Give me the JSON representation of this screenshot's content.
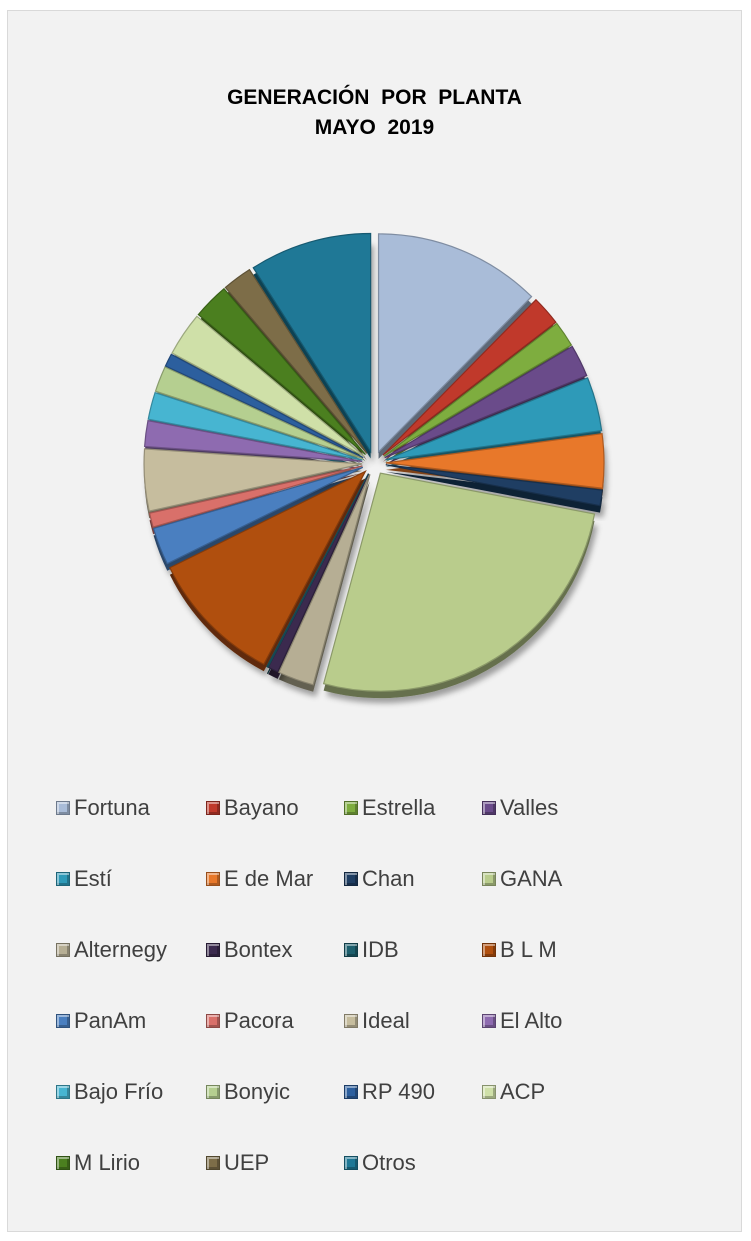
{
  "chart_data": {
    "type": "pie",
    "title_lines": [
      "GENERACIÓN  POR  PLANTA",
      "MAYO  2019"
    ],
    "legend_position": "bottom",
    "exploded": true,
    "slices": [
      {
        "name": "Fortuna",
        "value": 13.0,
        "color": "#a9bcd8"
      },
      {
        "name": "Bayano",
        "value": 2.3,
        "color": "#c0392b"
      },
      {
        "name": "Estrella",
        "value": 2.0,
        "color": "#7ead3f"
      },
      {
        "name": "Valles",
        "value": 2.5,
        "color": "#6a4b8a"
      },
      {
        "name": "Estí",
        "value": 4.2,
        "color": "#2e9ab8"
      },
      {
        "name": "E de Mar",
        "value": 4.2,
        "color": "#e8782a"
      },
      {
        "name": "Chan",
        "value": 1.2,
        "color": "#1f3e63"
      },
      {
        "name": "GANA",
        "value": 27.5,
        "color": "#b9cc8c"
      },
      {
        "name": "Alternegy",
        "value": 2.8,
        "color": "#b6ae94"
      },
      {
        "name": "Bontex",
        "value": 0.8,
        "color": "#3b2a4e"
      },
      {
        "name": "IDB",
        "value": 0.1,
        "color": "#1d5f6d"
      },
      {
        "name": "B L M",
        "value": 10.5,
        "color": "#b04f0e"
      },
      {
        "name": "PanAm",
        "value": 2.9,
        "color": "#4a7fc0"
      },
      {
        "name": "Pacora",
        "value": 1.1,
        "color": "#d9706a"
      },
      {
        "name": "Ideal",
        "value": 4.8,
        "color": "#c6bd9e"
      },
      {
        "name": "El Alto",
        "value": 2.0,
        "color": "#8e6bb0"
      },
      {
        "name": "Bajo Frío",
        "value": 2.1,
        "color": "#47b5d1"
      },
      {
        "name": "Bonyic",
        "value": 2.0,
        "color": "#b5cf90"
      },
      {
        "name": "RP 490",
        "value": 1.0,
        "color": "#2c5f9e"
      },
      {
        "name": "ACP",
        "value": 3.4,
        "color": "#cfe0a8"
      },
      {
        "name": "M Lirio",
        "value": 2.8,
        "color": "#4b7f1f"
      },
      {
        "name": "UEP",
        "value": 2.3,
        "color": "#7d6d48"
      },
      {
        "name": "Otros",
        "value": 9.5,
        "color": "#1f7896"
      }
    ]
  }
}
